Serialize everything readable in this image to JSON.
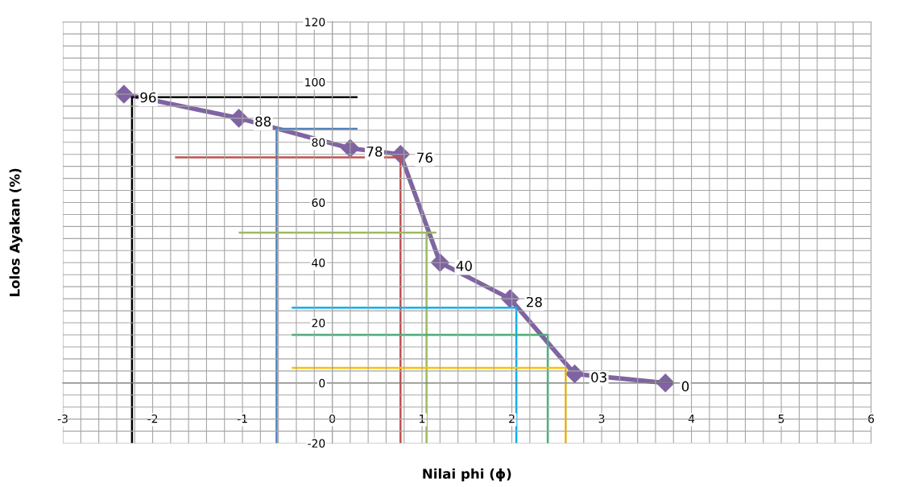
{
  "chart_data": {
    "type": "line",
    "xlabel": "Nilai phi (ϕ)",
    "ylabel": "Lolos Ayakan (%)",
    "xlim": [
      -3,
      6
    ],
    "xticks": [
      -3,
      -2,
      -1,
      0,
      1,
      2,
      3,
      4,
      5,
      6
    ],
    "ylim": [
      -20,
      120
    ],
    "yticks": [
      -20,
      0,
      20,
      40,
      60,
      80,
      100,
      120
    ],
    "grid": true,
    "marker": "diamond",
    "line_style": "solid",
    "series": [
      {
        "color": "#8064a2",
        "x": [
          -2.32,
          -1.04,
          0.2,
          0.76,
          1.2,
          1.98,
          2.7,
          3.71
        ],
        "values": [
          96,
          88,
          78,
          76,
          40,
          28,
          3,
          0
        ],
        "value_labels": [
          "96",
          "88",
          "78",
          "76",
          "40",
          "28",
          "03",
          "0"
        ]
      },
      {
        "type": "line",
        "marker": "none",
        "color": "#000000",
        "x": [
          -2.23,
          -2.23,
          0.27
        ],
        "values": [
          -20,
          95,
          95
        ]
      },
      {
        "type": "line",
        "marker": "none",
        "color": "#4f81bd",
        "x": [
          -0.62,
          -0.62,
          0.27
        ],
        "values": [
          -20,
          84.5,
          84.5
        ]
      },
      {
        "type": "line",
        "marker": "none",
        "color": "#c0504d",
        "x": [
          0.76,
          0.76,
          -1.74
        ],
        "values": [
          -20,
          75,
          75
        ]
      },
      {
        "type": "line",
        "marker": "none",
        "color": "#9bbb59",
        "x": [
          1.05,
          1.05,
          1.15,
          -1.03
        ],
        "values": [
          -20,
          50,
          50,
          50
        ]
      },
      {
        "type": "line",
        "marker": "none",
        "color": "#00b0f0",
        "x": [
          2.05,
          2.05,
          -0.44
        ],
        "values": [
          -20,
          25,
          25
        ]
      },
      {
        "type": "line",
        "marker": "none",
        "color": "#00b050",
        "x": [
          2.4,
          2.4,
          -0.44
        ],
        "values": [
          -20,
          16,
          16
        ]
      },
      {
        "type": "line",
        "marker": "none",
        "color": "#ffc000",
        "x": [
          2.6,
          2.6,
          -0.44
        ],
        "values": [
          -20,
          5,
          5
        ]
      }
    ]
  }
}
